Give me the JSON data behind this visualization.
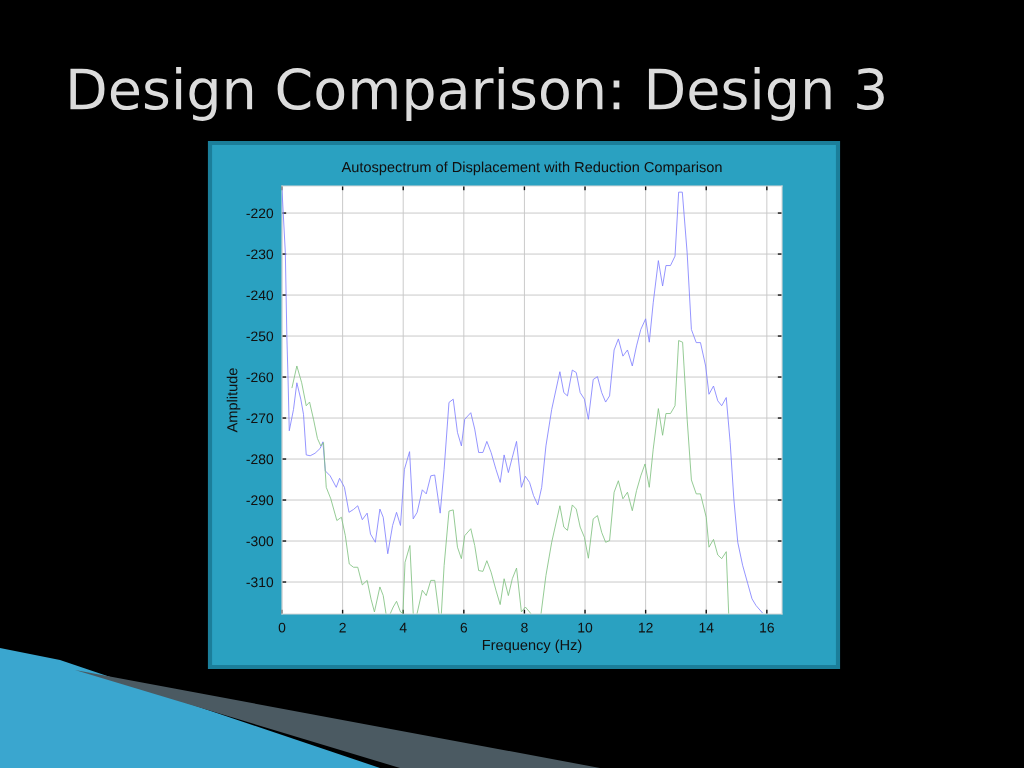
{
  "chart_data": {
    "type": "line",
    "title": "Design Comparison: Design 3",
    "subtitle": "Autospectrum of Displacement with Reduction Comparison",
    "xlabel": "Frequency (Hz)",
    "ylabel": "Amplitude",
    "xlim": [
      0,
      16.5
    ],
    "ylim": [
      -317.8,
      -213.4
    ],
    "xticks": [
      0,
      2,
      4,
      6,
      8,
      10,
      12,
      14,
      16
    ],
    "yticks": [
      -310,
      -300,
      -290,
      -280,
      -270,
      -260,
      -250,
      -240,
      -230,
      -220
    ],
    "grid": true,
    "series": [
      {
        "color": "#8080ff",
        "x": [
          0,
          0.11,
          0.16,
          0.2,
          0.24,
          0.38,
          0.49,
          0.62,
          0.71,
          0.8,
          0.93,
          1.09,
          1.26,
          1.35,
          1.43,
          1.59,
          1.79,
          1.9,
          2.06,
          2.21,
          2.36,
          2.5,
          2.65,
          2.81,
          2.92,
          3.08,
          3.23,
          3.34,
          3.49,
          3.65,
          3.78,
          3.91,
          4.04,
          4.21,
          4.33,
          4.46,
          4.63,
          4.76,
          4.91,
          5.04,
          5.22,
          5.35,
          5.51,
          5.65,
          5.79,
          5.92,
          6.03,
          6.23,
          6.36,
          6.49,
          6.63,
          6.76,
          6.9,
          7.06,
          7.2,
          7.33,
          7.47,
          7.6,
          7.74,
          7.9,
          8.03,
          8.17,
          8.3,
          8.44,
          8.57,
          8.71,
          8.9,
          9.17,
          9.3,
          9.42,
          9.58,
          9.71,
          9.84,
          9.98,
          10.11,
          10.27,
          10.41,
          10.55,
          10.68,
          10.81,
          10.96,
          11.1,
          11.25,
          11.4,
          11.56,
          11.7,
          11.84,
          12.0,
          12.12,
          12.25,
          12.42,
          12.56,
          12.67,
          12.82,
          12.97,
          13.09,
          13.21,
          13.37,
          13.51,
          13.67,
          13.81,
          13.98,
          14.09,
          14.24,
          14.38,
          14.51,
          14.66,
          14.79,
          14.91,
          15.04,
          15.2,
          15.37,
          15.51,
          15.64,
          15.85
        ],
        "values": [
          -214.3,
          -229.7,
          -250.0,
          -260.5,
          -273.1,
          -267.9,
          -261.4,
          -265.4,
          -269.1,
          -279.0,
          -279.2,
          -278.6,
          -277.4,
          -275.8,
          -282.9,
          -284.1,
          -286.9,
          -284.7,
          -286.9,
          -293.0,
          -292.3,
          -291.4,
          -294.8,
          -293.2,
          -298.3,
          -300.3,
          -292.2,
          -294.2,
          -303.1,
          -296.2,
          -293.0,
          -296.2,
          -282.5,
          -278.2,
          -294.6,
          -293.0,
          -287.5,
          -288.5,
          -284.1,
          -283.9,
          -293.2,
          -282.5,
          -266.2,
          -265.4,
          -273.5,
          -276.8,
          -270.3,
          -268.7,
          -272.7,
          -278.4,
          -278.4,
          -275.7,
          -278.4,
          -282.5,
          -285.7,
          -279.0,
          -283.3,
          -279.6,
          -275.7,
          -286.9,
          -284.2,
          -285.7,
          -288.9,
          -291.2,
          -286.9,
          -276.8,
          -267.9,
          -258.7,
          -263.8,
          -264.6,
          -258.3,
          -258.9,
          -263.8,
          -265.4,
          -270.3,
          -260.6,
          -259.9,
          -263.8,
          -266.1,
          -264.6,
          -253.4,
          -250.7,
          -254.9,
          -253.4,
          -257.3,
          -252.4,
          -248.4,
          -245.8,
          -251.5,
          -241.9,
          -231.6,
          -237.8,
          -232.8,
          -232.8,
          -230.5,
          -214.9,
          -214.9,
          -229.7,
          -248.4,
          -251.6,
          -251.6,
          -257.3,
          -264.2,
          -262.2,
          -265.8,
          -267.0,
          -265.0,
          -276.0,
          -289.7,
          -300.3,
          -305.9,
          -310.4,
          -314.1,
          -315.7,
          -317.5
        ]
      },
      {
        "color": "#80c080",
        "x": [
          0.33,
          0.49,
          0.65,
          0.8,
          0.91,
          1.04,
          1.17,
          1.28,
          1.37,
          1.46,
          1.61,
          1.81,
          1.96,
          2.09,
          2.22,
          2.36,
          2.5,
          2.65,
          2.81,
          2.94,
          3.05,
          3.23,
          3.34,
          3.43,
          3.5,
          3.58,
          3.67,
          3.78,
          3.91,
          3.99,
          4.06,
          4.22,
          4.33,
          4.4,
          4.46,
          4.63,
          4.76,
          4.91,
          5.04,
          5.18,
          5.22,
          5.26,
          5.35,
          5.51,
          5.65,
          5.79,
          5.92,
          6.03,
          6.23,
          6.36,
          6.49,
          6.63,
          6.76,
          6.9,
          7.06,
          7.2,
          7.33,
          7.47,
          7.6,
          7.74,
          7.9,
          8.03,
          8.17,
          8.2,
          8.35,
          8.55,
          8.71,
          8.9,
          9.17,
          9.3,
          9.42,
          9.58,
          9.71,
          9.84,
          9.98,
          10.11,
          10.27,
          10.41,
          10.55,
          10.68,
          10.81,
          10.96,
          11.1,
          11.25,
          11.4,
          11.56,
          11.7,
          11.84,
          11.98,
          12.12,
          12.25,
          12.42,
          12.56,
          12.67,
          12.82,
          12.97,
          13.09,
          13.22,
          13.37,
          13.51,
          13.67,
          13.81,
          14.0,
          14.09,
          14.24,
          14.38,
          14.51,
          14.66,
          14.74
        ],
        "values": [
          -262.6,
          -257.3,
          -261.4,
          -267.0,
          -266.1,
          -270.3,
          -275.0,
          -276.8,
          -276.0,
          -286.9,
          -289.7,
          -295.0,
          -294.2,
          -298.7,
          -305.6,
          -306.4,
          -306.4,
          -310.7,
          -309.6,
          -314.2,
          -317.3,
          -311.2,
          -313.3,
          -317.6,
          null,
          -317.6,
          -316.1,
          -314.7,
          -317.3,
          -317.6,
          -305.2,
          -301.1,
          -317.6,
          null,
          -317.6,
          -312.0,
          -313.3,
          -309.6,
          -309.6,
          -317.6,
          null,
          -317.6,
          -306.0,
          -292.7,
          -292.4,
          -301.5,
          -304.3,
          -298.7,
          -297.0,
          -301.1,
          -307.2,
          -307.4,
          -304.8,
          -307.6,
          -312.0,
          -315.5,
          -309.2,
          -313.3,
          -309.2,
          -306.6,
          -317.3,
          -316.1,
          -317.3,
          -317.6,
          null,
          -317.6,
          -308.4,
          -300.3,
          -291.4,
          -296.6,
          -297.4,
          -291.2,
          -292.2,
          -296.6,
          -299.1,
          -304.2,
          -294.6,
          -293.8,
          -297.9,
          -300.3,
          -299.9,
          -288.1,
          -285.3,
          -289.7,
          -288.1,
          -292.6,
          -287.7,
          -284.1,
          -281.2,
          -286.9,
          -277.6,
          -267.7,
          -274.2,
          -268.9,
          -268.9,
          -267.0,
          -251.1,
          -251.5,
          -270.3,
          -285.1,
          -288.5,
          -288.5,
          -294.2,
          -301.5,
          -299.6,
          -303.4,
          -304.3,
          -302.6,
          -317.6
        ]
      }
    ]
  }
}
